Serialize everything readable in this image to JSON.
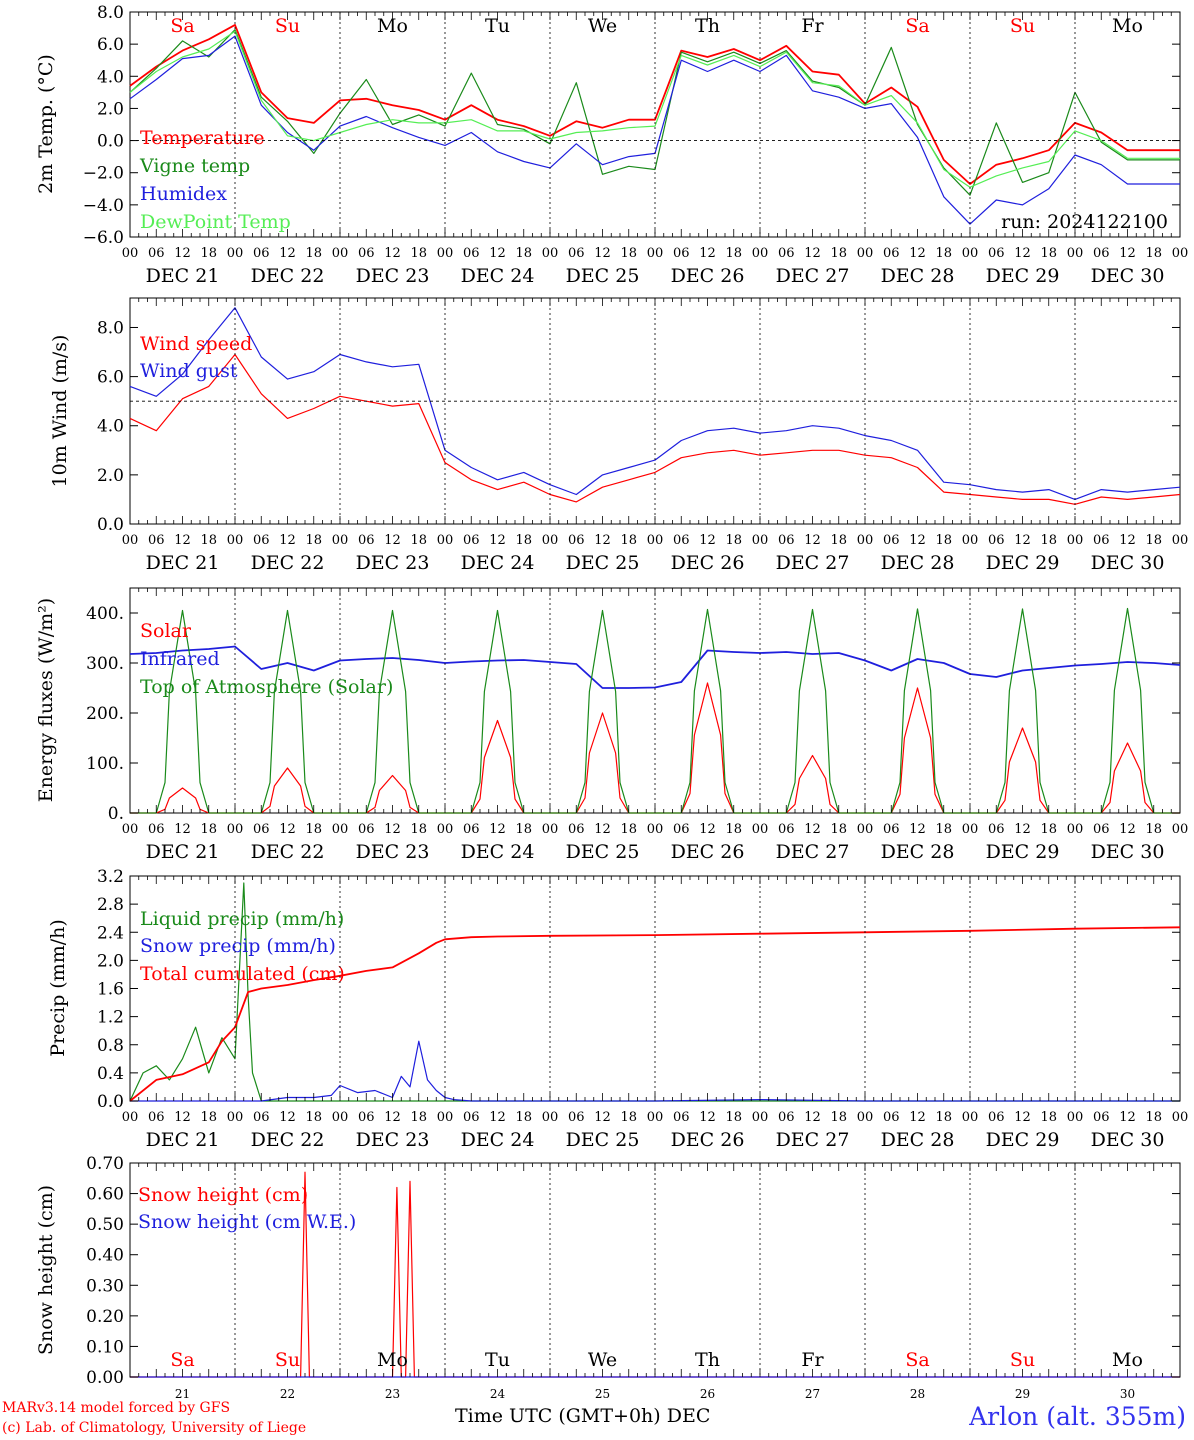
{
  "colors": {
    "temperature": "#ff0000",
    "vigne": "#1a8a1a",
    "humidex": "#1f1fdd",
    "dewpoint": "#55ee55",
    "wind_speed": "#ff0000",
    "wind_gust": "#1f1fdd",
    "solar": "#ff0000",
    "infrared": "#1f1fdd",
    "toa": "#1a8a1a",
    "liquid": "#1a8a1a",
    "snow_precip": "#1f1fdd",
    "cumul": "#ff0000",
    "snow_height": "#ff0000",
    "snow_we": "#1f1fdd",
    "weekend": "#ff0000",
    "weekday": "#000000"
  },
  "run_label": "run: 2024122100",
  "footer": {
    "credit_line1": "MARv3.14 model forced by GFS",
    "credit_line2": "(c) Lab. of Climatology, University of Liege",
    "x_title": "Time UTC (GMT+0h) DEC",
    "station": "Arlon (alt. 355m)"
  },
  "days": {
    "weekday_labels": [
      "Sa",
      "Su",
      "Mo",
      "Tu",
      "We",
      "Th",
      "Fr",
      "Sa",
      "Su",
      "Mo"
    ],
    "weekend": [
      true,
      true,
      false,
      false,
      false,
      false,
      false,
      true,
      true,
      false
    ],
    "date_labels": [
      "DEC 21",
      "DEC 22",
      "DEC 23",
      "DEC 24",
      "DEC 25",
      "DEC 26",
      "DEC 27",
      "DEC 28",
      "DEC 29",
      "DEC 30"
    ],
    "day_numbers": [
      "21",
      "22",
      "23",
      "24",
      "25",
      "26",
      "27",
      "28",
      "29",
      "30"
    ],
    "hour_ticks": [
      "00",
      "06",
      "12",
      "18"
    ],
    "last_tick": "00"
  },
  "chart_data": [
    {
      "id": "temp",
      "type": "line",
      "ylabel": "2m Temp. (°C)",
      "ylim": [
        -6,
        8
      ],
      "yticks": [
        "8.0",
        "6.0",
        "4.0",
        "2.0",
        "0.0",
        "−2.0",
        "−4.0",
        "−6.0"
      ],
      "x_unit": "hours since 21 Dec 00 UTC",
      "x_range": [
        0,
        240
      ],
      "dashed_ref": 0,
      "series": [
        {
          "name": "Temperature",
          "color": "temperature",
          "x": [
            0,
            6,
            12,
            18,
            24,
            30,
            36,
            42,
            48,
            54,
            60,
            66,
            72,
            78,
            84,
            90,
            96,
            102,
            108,
            114,
            120,
            126,
            132,
            138,
            144,
            150,
            156,
            162,
            168,
            174,
            180,
            186,
            192,
            198,
            204,
            210,
            216,
            222,
            228,
            234,
            240
          ],
          "y": [
            3.4,
            4.6,
            5.6,
            6.3,
            7.2,
            3.0,
            1.4,
            1.1,
            2.5,
            2.6,
            2.2,
            1.9,
            1.3,
            2.2,
            1.3,
            0.9,
            0.3,
            1.2,
            0.8,
            1.3,
            1.3,
            5.6,
            5.2,
            5.7,
            5.0,
            5.9,
            4.3,
            4.1,
            2.3,
            3.3,
            2.1,
            -1.2,
            -2.7,
            -1.5,
            -1.1,
            -0.6,
            1.1,
            0.5,
            -0.6,
            -0.6,
            -0.6
          ]
        },
        {
          "name": "Vigne temp",
          "color": "vigne",
          "x": [
            0,
            6,
            12,
            18,
            24,
            30,
            36,
            42,
            48,
            54,
            60,
            66,
            72,
            78,
            84,
            90,
            96,
            102,
            108,
            114,
            120,
            126,
            132,
            138,
            144,
            150,
            156,
            162,
            168,
            174,
            180,
            186,
            192,
            198,
            204,
            210,
            216,
            222,
            228,
            234,
            240
          ],
          "y": [
            3.0,
            4.5,
            6.2,
            5.2,
            6.9,
            2.7,
            1.2,
            -0.8,
            1.7,
            3.8,
            1.0,
            1.6,
            0.9,
            4.2,
            1.0,
            0.7,
            -0.2,
            3.6,
            -2.1,
            -1.6,
            -1.8,
            5.5,
            4.9,
            5.5,
            4.8,
            5.6,
            3.7,
            3.3,
            2.2,
            5.8,
            1.0,
            -1.7,
            -3.4,
            1.1,
            -2.6,
            -2.0,
            3.0,
            -0.1,
            -1.2,
            -1.2,
            -1.2
          ]
        },
        {
          "name": "Humidex",
          "color": "humidex",
          "x": [
            0,
            6,
            12,
            18,
            24,
            30,
            36,
            42,
            48,
            54,
            60,
            66,
            72,
            78,
            84,
            90,
            96,
            102,
            108,
            114,
            120,
            126,
            132,
            138,
            144,
            150,
            156,
            162,
            168,
            174,
            180,
            186,
            192,
            198,
            204,
            210,
            216,
            222,
            228,
            234,
            240
          ],
          "y": [
            2.6,
            3.8,
            5.1,
            5.3,
            6.5,
            2.2,
            0.5,
            -0.6,
            0.9,
            1.5,
            0.8,
            0.2,
            -0.3,
            0.5,
            -0.7,
            -1.3,
            -1.7,
            -0.2,
            -1.5,
            -1.0,
            -0.8,
            5.0,
            4.3,
            5.0,
            4.3,
            5.3,
            3.1,
            2.7,
            2.0,
            2.3,
            0.2,
            -3.5,
            -5.2,
            -3.7,
            -4.0,
            -3.0,
            -0.9,
            -1.5,
            -2.7,
            -2.7,
            -2.7
          ]
        },
        {
          "name": "DewPoint Temp",
          "color": "dewpoint",
          "x": [
            0,
            6,
            12,
            18,
            24,
            30,
            36,
            42,
            48,
            54,
            60,
            66,
            72,
            78,
            84,
            90,
            96,
            102,
            108,
            114,
            120,
            126,
            132,
            138,
            144,
            150,
            156,
            162,
            168,
            174,
            180,
            186,
            192,
            198,
            204,
            210,
            216,
            222,
            228,
            234,
            240
          ],
          "y": [
            3.0,
            4.3,
            5.2,
            5.7,
            6.8,
            2.5,
            0.3,
            0.0,
            0.5,
            1.0,
            1.3,
            1.1,
            1.1,
            1.3,
            0.6,
            0.6,
            0.1,
            0.5,
            0.6,
            0.8,
            0.9,
            5.3,
            4.7,
            5.3,
            4.6,
            5.5,
            3.6,
            3.4,
            2.2,
            2.8,
            1.1,
            -1.8,
            -2.9,
            -2.2,
            -1.7,
            -1.3,
            0.6,
            0.0,
            -1.1,
            -1.1,
            -1.1
          ]
        }
      ]
    },
    {
      "id": "wind",
      "type": "line",
      "ylabel": "10m Wind (m/s)",
      "ylim": [
        0,
        9.2
      ],
      "yticks": [
        "8.0",
        "6.0",
        "4.0",
        "2.0",
        "0.0"
      ],
      "x_unit": "hours since 21 Dec 00 UTC",
      "x_range": [
        0,
        240
      ],
      "dashed_ref": 5,
      "series": [
        {
          "name": "Wind speed",
          "color": "wind_speed",
          "x": [
            0,
            6,
            12,
            18,
            24,
            30,
            36,
            42,
            48,
            54,
            60,
            66,
            72,
            78,
            84,
            90,
            96,
            102,
            108,
            114,
            120,
            126,
            132,
            138,
            144,
            150,
            156,
            162,
            168,
            174,
            180,
            186,
            192,
            198,
            204,
            210,
            216,
            222,
            228,
            234,
            240
          ],
          "y": [
            4.3,
            3.8,
            5.1,
            5.6,
            6.9,
            5.3,
            4.3,
            4.7,
            5.2,
            5.0,
            4.8,
            4.9,
            2.5,
            1.8,
            1.4,
            1.7,
            1.2,
            0.9,
            1.5,
            1.8,
            2.1,
            2.7,
            2.9,
            3.0,
            2.8,
            2.9,
            3.0,
            3.0,
            2.8,
            2.7,
            2.3,
            1.3,
            1.2,
            1.1,
            1.0,
            1.0,
            0.8,
            1.1,
            1.0,
            1.1,
            1.2
          ]
        },
        {
          "name": "Wind gust",
          "color": "wind_gust",
          "x": [
            0,
            6,
            12,
            18,
            24,
            30,
            36,
            42,
            48,
            54,
            60,
            66,
            72,
            78,
            84,
            90,
            96,
            102,
            108,
            114,
            120,
            126,
            132,
            138,
            144,
            150,
            156,
            162,
            168,
            174,
            180,
            186,
            192,
            198,
            204,
            210,
            216,
            222,
            228,
            234,
            240
          ],
          "y": [
            5.6,
            5.2,
            6.1,
            7.5,
            8.8,
            6.8,
            5.9,
            6.2,
            6.9,
            6.6,
            6.4,
            6.5,
            3.0,
            2.3,
            1.8,
            2.1,
            1.6,
            1.2,
            2.0,
            2.3,
            2.6,
            3.4,
            3.8,
            3.9,
            3.7,
            3.8,
            4.0,
            3.9,
            3.6,
            3.4,
            3.0,
            1.7,
            1.6,
            1.4,
            1.3,
            1.4,
            1.0,
            1.4,
            1.3,
            1.4,
            1.5
          ]
        }
      ]
    },
    {
      "id": "energy",
      "type": "line",
      "ylabel": "Energy fluxes (W/m²)",
      "ylim": [
        0,
        450
      ],
      "yticks": [
        "400.",
        "300.",
        "200.",
        "100.",
        "0."
      ],
      "x_unit": "hours since 21 Dec 00 UTC",
      "x_range": [
        0,
        240
      ],
      "peak_hour": 12,
      "series": [
        {
          "name": "Solar",
          "color": "solar",
          "kind": "daily_peaks",
          "peaks": [
            50,
            90,
            75,
            185,
            200,
            260,
            115,
            250,
            170,
            140
          ]
        },
        {
          "name": "Infrared",
          "color": "infrared",
          "kind": "line",
          "x": [
            0,
            6,
            12,
            18,
            24,
            30,
            36,
            42,
            48,
            54,
            60,
            66,
            72,
            78,
            84,
            90,
            96,
            102,
            108,
            114,
            120,
            126,
            132,
            138,
            144,
            150,
            156,
            162,
            168,
            174,
            180,
            186,
            192,
            198,
            204,
            210,
            216,
            222,
            228,
            234,
            240
          ],
          "y": [
            318,
            320,
            325,
            328,
            333,
            288,
            300,
            285,
            305,
            308,
            310,
            306,
            300,
            303,
            305,
            306,
            302,
            298,
            250,
            250,
            251,
            262,
            325,
            322,
            320,
            322,
            318,
            320,
            305,
            285,
            308,
            300,
            278,
            272,
            285,
            290,
            295,
            298,
            302,
            300,
            296
          ]
        },
        {
          "name": "Top of Atmosphere (Solar)",
          "color": "toa",
          "kind": "daily_peaks",
          "peaks": [
            405,
            405,
            405,
            405,
            405,
            407,
            407,
            408,
            408,
            409
          ]
        }
      ]
    },
    {
      "id": "precip",
      "type": "line",
      "ylabel": "Precip (mm/h)",
      "ylim": [
        0,
        3.2
      ],
      "yticks": [
        "3.2",
        "2.8",
        "2.4",
        "2.0",
        "1.6",
        "1.2",
        "0.8",
        "0.4",
        "0.0"
      ],
      "x_unit": "hours since 21 Dec 00 UTC",
      "x_range": [
        0,
        240
      ],
      "series": [
        {
          "name": "Liquid precip (mm/h)",
          "color": "liquid",
          "x": [
            0,
            3,
            6,
            9,
            12,
            15,
            18,
            21,
            24,
            26,
            27,
            28,
            30,
            33,
            36,
            40,
            48,
            54,
            60,
            66,
            72,
            84,
            96,
            120,
            144,
            168,
            192,
            216,
            240
          ],
          "y": [
            0.0,
            0.4,
            0.5,
            0.3,
            0.6,
            1.05,
            0.4,
            0.9,
            0.6,
            3.1,
            1.5,
            0.4,
            0.0,
            0.0,
            0.0,
            0.0,
            0.0,
            0.0,
            0.0,
            0.0,
            0.0,
            0.0,
            0.0,
            0.0,
            0.0,
            0.0,
            0.0,
            0.0,
            0.0
          ]
        },
        {
          "name": "Snow precip (mm/h)",
          "color": "snow_precip",
          "x": [
            0,
            12,
            24,
            30,
            36,
            42,
            46,
            48,
            52,
            56,
            60,
            62,
            64,
            66,
            68,
            70,
            72,
            74,
            78,
            84,
            96,
            120,
            144,
            168,
            192,
            216,
            240
          ],
          "y": [
            0.0,
            0.0,
            0.0,
            0.0,
            0.05,
            0.05,
            0.08,
            0.22,
            0.12,
            0.15,
            0.05,
            0.35,
            0.2,
            0.85,
            0.3,
            0.15,
            0.05,
            0.02,
            0.0,
            0.0,
            0.0,
            0.0,
            0.02,
            0.0,
            0.0,
            0.0,
            0.0
          ]
        },
        {
          "name": "Total cumulated (cm)",
          "color": "cumul",
          "x": [
            0,
            6,
            12,
            18,
            21,
            24,
            27,
            30,
            36,
            42,
            48,
            54,
            60,
            66,
            70,
            72,
            78,
            84,
            96,
            120,
            144,
            168,
            192,
            216,
            240
          ],
          "y": [
            0.0,
            0.3,
            0.38,
            0.55,
            0.85,
            1.05,
            1.55,
            1.6,
            1.65,
            1.72,
            1.78,
            1.85,
            1.9,
            2.1,
            2.25,
            2.3,
            2.33,
            2.34,
            2.35,
            2.36,
            2.38,
            2.4,
            2.42,
            2.45,
            2.47
          ]
        }
      ]
    },
    {
      "id": "snow",
      "type": "line",
      "ylabel": "Snow height (cm)",
      "ylim": [
        0,
        0.7
      ],
      "yticks": [
        "0.70",
        "0.60",
        "0.50",
        "0.40",
        "0.30",
        "0.20",
        "0.10",
        "0.00"
      ],
      "x_unit": "hours since 21 Dec 00 UTC",
      "x_range": [
        0,
        240
      ],
      "series": [
        {
          "name": "Snow height (cm)",
          "color": "snow_height",
          "x": [
            0,
            39,
            40,
            41,
            60,
            61,
            62,
            63,
            64,
            65,
            240
          ],
          "y": [
            0.0,
            0.0,
            0.67,
            0.0,
            0.0,
            0.62,
            0.0,
            0.0,
            0.64,
            0.0,
            0.0
          ]
        },
        {
          "name": "Snow height (cm W.E.)",
          "color": "snow_we",
          "x": [
            0,
            240
          ],
          "y": [
            0.0,
            0.0
          ]
        }
      ]
    }
  ]
}
